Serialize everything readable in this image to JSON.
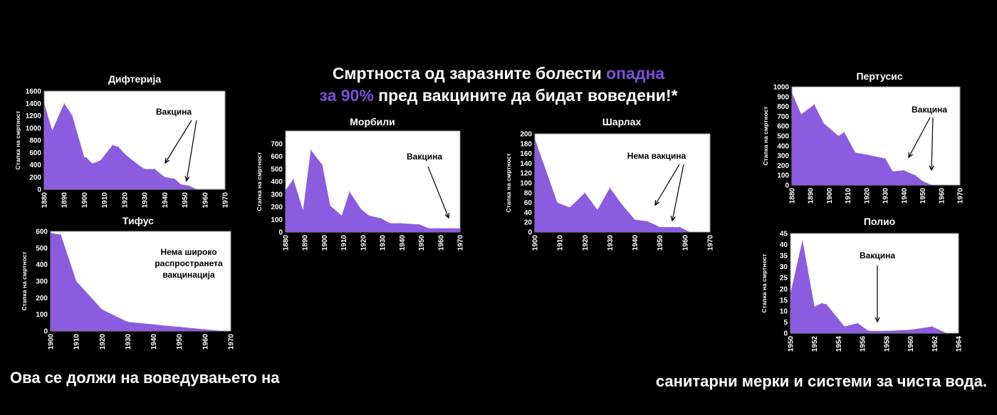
{
  "colors": {
    "background": "#000000",
    "area": "#8b5ce0",
    "accent": "#7a4fd6",
    "text": "#ffffff"
  },
  "headline": {
    "line1_white": "Смртноста од заразните болести ",
    "line1_accent": "опадна",
    "line2_accent": "за 90%",
    "line2_white": " пред вакцините да бидат воведени!*"
  },
  "footer": {
    "left": "Ова се должи на воведувањето на",
    "right": "санитарни мерки и системи за чиста вода."
  },
  "chart_data": [
    {
      "id": "diphtheria",
      "type": "area",
      "title": "Дифтерија",
      "ylabel": "Стапка на смртност",
      "xlim": [
        1880,
        1970
      ],
      "ylim": [
        0,
        1600
      ],
      "xticks": [
        1880,
        1890,
        1900,
        1910,
        1920,
        1930,
        1940,
        1950,
        1960,
        1970
      ],
      "yticks": [
        0,
        200,
        400,
        600,
        800,
        1000,
        1200,
        1400,
        1600
      ],
      "x": [
        1880,
        1884,
        1890,
        1894,
        1900,
        1901,
        1904,
        1908,
        1914,
        1917,
        1920,
        1926,
        1930,
        1935,
        1940,
        1945,
        1948,
        1952,
        1956
      ],
      "y": [
        1400,
        960,
        1400,
        1200,
        520,
        520,
        420,
        470,
        720,
        690,
        580,
        420,
        330,
        330,
        200,
        170,
        80,
        60,
        0
      ],
      "annotation": "Вакцина"
    },
    {
      "id": "typhus",
      "type": "area",
      "title": "Тифус",
      "ylabel": "Стапка на смртност",
      "xlim": [
        1900,
        1970
      ],
      "ylim": [
        0,
        600
      ],
      "xticks": [
        1900,
        1910,
        1920,
        1930,
        1940,
        1950,
        1960,
        1970
      ],
      "yticks": [
        0,
        100,
        200,
        300,
        400,
        500,
        600
      ],
      "x": [
        1900,
        1904,
        1910,
        1920,
        1930,
        1940,
        1950,
        1960,
        1967
      ],
      "y": [
        590,
        580,
        300,
        130,
        55,
        40,
        25,
        10,
        0
      ],
      "annotation": "Нема широко распространета вакцинација"
    },
    {
      "id": "measles",
      "type": "area",
      "title": "Морбили",
      "ylabel": "Стапка на смртност",
      "xlim": [
        1880,
        1970
      ],
      "ylim": [
        0,
        800
      ],
      "xticks": [
        1880,
        1890,
        1900,
        1910,
        1920,
        1930,
        1940,
        1950,
        1960,
        1970
      ],
      "yticks": [
        0,
        100,
        200,
        300,
        400,
        500,
        600,
        700
      ],
      "x": [
        1880,
        1884,
        1889,
        1893,
        1899,
        1903,
        1909,
        1913,
        1919,
        1923,
        1929,
        1934,
        1939,
        1944,
        1949,
        1954,
        1959,
        1964,
        1970
      ],
      "y": [
        330,
        420,
        170,
        650,
        530,
        210,
        130,
        320,
        180,
        130,
        110,
        70,
        70,
        65,
        60,
        30,
        30,
        30,
        30
      ],
      "annotation": "Вакцина"
    },
    {
      "id": "scarlet",
      "type": "area",
      "title": "Шарлах",
      "ylabel": "Стапка на смртност",
      "xlim": [
        1900,
        1970
      ],
      "ylim": [
        0,
        200
      ],
      "xticks": [
        1900,
        1910,
        1920,
        1930,
        1940,
        1950,
        1960,
        1970
      ],
      "yticks": [
        0,
        20,
        40,
        60,
        80,
        100,
        120,
        140,
        160,
        180,
        200
      ],
      "x": [
        1900,
        1909,
        1914,
        1920,
        1925,
        1930,
        1935,
        1940,
        1945,
        1950,
        1955,
        1958,
        1962
      ],
      "y": [
        190,
        60,
        50,
        80,
        45,
        90,
        55,
        25,
        22,
        10,
        10,
        10,
        0
      ],
      "annotation": "Нема вакцина"
    },
    {
      "id": "pertussis",
      "type": "area",
      "title": "Пертусис",
      "ylabel": "Стапка на смртност",
      "xlim": [
        1880,
        1970
      ],
      "ylim": [
        0,
        1000
      ],
      "xticks": [
        1880,
        1890,
        1900,
        1910,
        1920,
        1930,
        1940,
        1950,
        1960,
        1970
      ],
      "yticks": [
        0,
        100,
        200,
        300,
        400,
        500,
        600,
        700,
        800,
        900,
        1000
      ],
      "x": [
        1880,
        1885,
        1892,
        1897,
        1905,
        1908,
        1914,
        1920,
        1930,
        1934,
        1940,
        1946,
        1950,
        1955
      ],
      "y": [
        940,
        720,
        820,
        630,
        500,
        540,
        330,
        310,
        270,
        140,
        150,
        100,
        40,
        0
      ],
      "annotation": "Вакцина"
    },
    {
      "id": "polio",
      "type": "area",
      "title": "Полио",
      "ylabel": "Стапка на смртност",
      "xlim": [
        1950,
        1964
      ],
      "ylim": [
        0,
        45
      ],
      "xticks": [
        1950,
        1952,
        1954,
        1956,
        1958,
        1960,
        1962,
        1964
      ],
      "yticks": [
        0,
        5,
        10,
        15,
        20,
        25,
        30,
        35,
        40,
        45
      ],
      "x": [
        1950,
        1951,
        1952,
        1952.6,
        1953,
        1954.5,
        1955.6,
        1956.5,
        1958,
        1960,
        1961.8,
        1963
      ],
      "y": [
        18,
        42,
        12,
        13.5,
        13,
        3,
        4.5,
        1,
        1,
        1.5,
        3,
        0
      ],
      "annotation": "Вакцина"
    }
  ]
}
